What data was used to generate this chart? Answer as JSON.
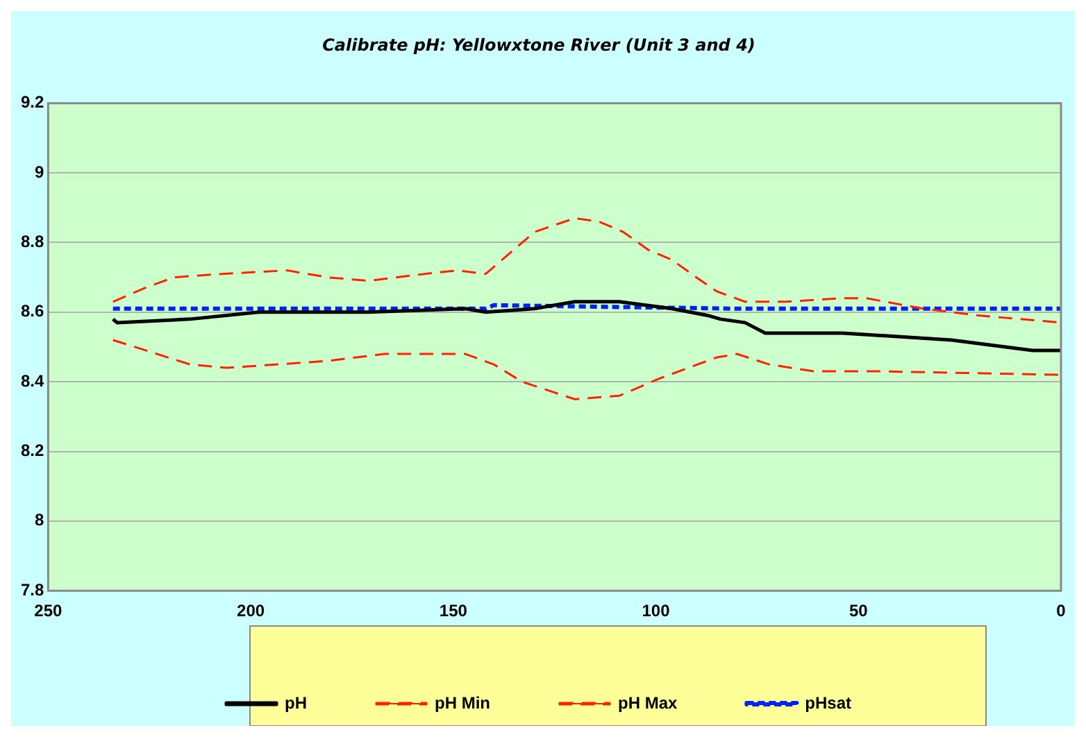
{
  "chart_data": {
    "type": "line",
    "title": "Calibrate pH: Yellowxtone River (Unit 3 and 4)",
    "xlim": [
      250,
      0
    ],
    "xticks": [
      250,
      200,
      150,
      100,
      50,
      0
    ],
    "ylim": [
      7.8,
      9.2
    ],
    "yticks": [
      7.8,
      {
        "value": 8,
        "label": "8"
      },
      8.2,
      8.4,
      8.6,
      8.8,
      {
        "value": 9,
        "label": "9"
      },
      9.2
    ],
    "grid": "y",
    "legend": "bottom",
    "marker": "none",
    "series": [
      {
        "name": "pH",
        "color": "#000000",
        "line_style": "solid",
        "x": [
          234,
          233,
          215,
          198,
          171,
          147,
          142,
          130,
          120,
          109,
          96,
          87,
          84,
          78,
          73,
          54,
          27,
          7,
          0
        ],
        "values": [
          8.58,
          8.57,
          8.58,
          8.6,
          8.6,
          8.61,
          8.6,
          8.61,
          8.63,
          8.63,
          8.61,
          8.59,
          8.58,
          8.57,
          8.54,
          8.54,
          8.52,
          8.49,
          8.49
        ]
      },
      {
        "name": "pH Min",
        "color": "#ff2200",
        "line_style": "dashed",
        "x": [
          234,
          215,
          206,
          181,
          167,
          147,
          140,
          133,
          120,
          109,
          99,
          92,
          85,
          80,
          72,
          61,
          44,
          0
        ],
        "values": [
          8.52,
          8.45,
          8.44,
          8.46,
          8.48,
          8.48,
          8.45,
          8.4,
          8.35,
          8.36,
          8.41,
          8.44,
          8.47,
          8.48,
          8.45,
          8.43,
          8.43,
          8.42
        ]
      },
      {
        "name": "pH Max",
        "color": "#ff2200",
        "line_style": "dashed",
        "x": [
          234,
          226,
          219,
          207,
          191,
          181,
          171,
          157,
          149,
          142,
          137,
          130,
          120,
          114,
          108,
          102,
          96,
          90,
          85,
          78,
          68,
          54,
          48,
          34,
          20,
          0
        ],
        "values": [
          8.63,
          8.67,
          8.7,
          8.71,
          8.72,
          8.7,
          8.69,
          8.71,
          8.72,
          8.71,
          8.76,
          8.83,
          8.87,
          8.86,
          8.83,
          8.78,
          8.75,
          8.7,
          8.66,
          8.63,
          8.63,
          8.64,
          8.64,
          8.61,
          8.59,
          8.57
        ]
      },
      {
        "name": "pHsat",
        "color": "#0022ee",
        "line_style": "dotted",
        "x": [
          234,
          142,
          140,
          80,
          0
        ],
        "values": [
          8.61,
          8.61,
          8.62,
          8.61,
          8.61
        ]
      }
    ]
  }
}
